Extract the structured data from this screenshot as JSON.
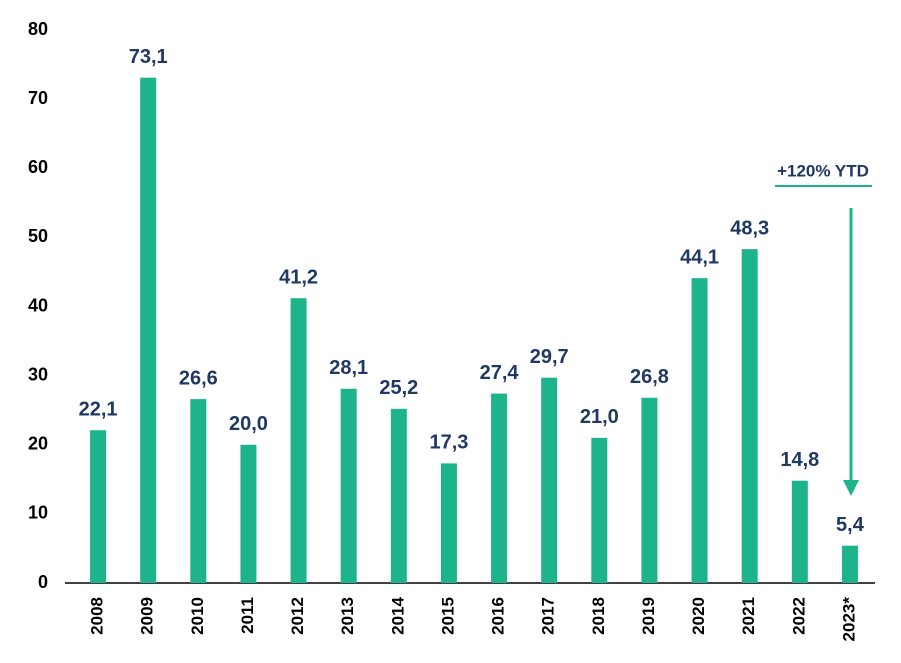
{
  "chart_data": {
    "type": "bar",
    "categories": [
      "2008",
      "2009",
      "2010",
      "2011",
      "2012",
      "2013",
      "2014",
      "2015",
      "2016",
      "2017",
      "2018",
      "2019",
      "2020",
      "2021",
      "2022",
      "2023*"
    ],
    "values": [
      22.1,
      73.1,
      26.6,
      20.0,
      41.2,
      28.1,
      25.2,
      17.3,
      27.4,
      29.7,
      21.0,
      26.8,
      44.1,
      48.3,
      14.8,
      5.4
    ],
    "value_labels": [
      "22,1",
      "73,1",
      "26,6",
      "20,0",
      "41,2",
      "28,1",
      "25,2",
      "17,3",
      "27,4",
      "29,7",
      "21,0",
      "26,8",
      "44,1",
      "48,3",
      "14,8",
      "5,4"
    ],
    "color": "#1db38b",
    "ylim": [
      0,
      80
    ],
    "yticks": [
      0,
      10,
      20,
      30,
      40,
      50,
      60,
      70,
      80
    ],
    "grid": false,
    "annotation": "+120% YTD"
  }
}
